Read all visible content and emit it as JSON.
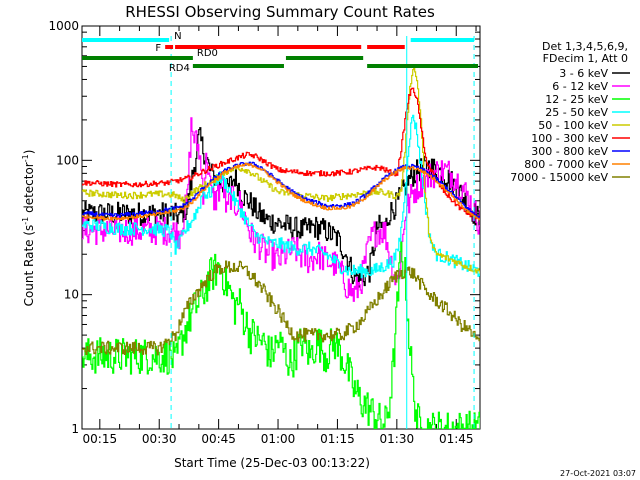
{
  "chart_data": {
    "type": "line",
    "title": "RHESSI Observing Summary Count Rates",
    "xlabel": "Start Time (25-Dec-03 00:13:22)",
    "ylabel_main": "Count Rate (s",
    "ylabel_sup1": "-1",
    "ylabel_mid": " detector",
    "ylabel_sup2": "-1",
    "ylabel_end": ")",
    "footer": "27-Oct-2021 03:07",
    "yscale": "log",
    "ylim": [
      1,
      1000
    ],
    "xlim_minutes": [
      10.5,
      111
    ],
    "x_ticks": [
      {
        "minute": 15,
        "label": "00:15"
      },
      {
        "minute": 30,
        "label": "00:30"
      },
      {
        "minute": 45,
        "label": "00:45"
      },
      {
        "minute": 60,
        "label": "01:00"
      },
      {
        "minute": 75,
        "label": "01:15"
      },
      {
        "minute": 90,
        "label": "01:30"
      },
      {
        "minute": 105,
        "label": "01:45"
      }
    ],
    "y_ticks": [
      {
        "value": 1,
        "label": "1"
      },
      {
        "value": 10,
        "label": "10"
      },
      {
        "value": 100,
        "label": "100"
      },
      {
        "value": 1000,
        "label": "1000"
      }
    ],
    "legend_header": [
      "Det 1,3,4,5,6,9,",
      "FDecim 1, Att 0"
    ],
    "legend_placement": "right",
    "series": [
      {
        "name": "3 - 6 keV",
        "color": "#000000",
        "x": [
          33,
          35,
          37,
          40,
          43,
          45,
          47,
          49,
          51,
          53,
          55,
          57,
          60,
          63,
          66,
          69,
          72,
          75,
          77,
          79,
          81,
          83,
          85,
          87,
          88,
          90,
          91,
          92,
          93,
          94,
          95,
          96,
          97,
          98,
          99,
          100,
          101,
          102,
          103,
          104,
          105,
          106,
          107,
          108,
          109,
          110.5
        ],
        "y": [
          40,
          38,
          45,
          150,
          80,
          70,
          60,
          75,
          55,
          48,
          40,
          36,
          34,
          32,
          30,
          32,
          30,
          26,
          20,
          14,
          13,
          15,
          32,
          32,
          40,
          48,
          55,
          62,
          72,
          78,
          82,
          86,
          88,
          90,
          88,
          86,
          82,
          78,
          73,
          68,
          62,
          57,
          52,
          47,
          42,
          37
        ]
      },
      {
        "name": "6 - 12 keV",
        "color": "#ff00ff",
        "x": [
          33,
          35,
          37,
          38,
          39,
          40,
          41,
          42,
          43,
          44,
          45,
          46,
          47,
          48,
          49,
          50,
          51,
          52,
          53,
          54,
          55,
          56,
          57,
          58,
          59,
          60,
          61,
          62,
          64,
          66,
          68,
          70,
          72,
          74,
          75,
          76,
          77,
          78,
          79,
          80,
          81,
          82,
          83,
          84,
          85,
          86,
          87,
          88,
          89,
          90,
          91,
          92,
          94,
          96,
          98,
          100,
          102,
          104,
          106,
          108,
          110.5
        ],
        "y": [
          30,
          28,
          50,
          180,
          140,
          120,
          60,
          110,
          55,
          50,
          60,
          70,
          40,
          55,
          45,
          50,
          42,
          35,
          28,
          25,
          24,
          22,
          20,
          20,
          19,
          18,
          19,
          20,
          22,
          19,
          18,
          20,
          18,
          17,
          16,
          14,
          12,
          11,
          10,
          11,
          13,
          18,
          24,
          28,
          30,
          30,
          29,
          20,
          15,
          12,
          20,
          40,
          58,
          68,
          76,
          82,
          84,
          78,
          66,
          52,
          36
        ]
      },
      {
        "name": "12 - 25 keV",
        "color": "#00ff00",
        "x": [
          33,
          34,
          35,
          36,
          37,
          38,
          39,
          40,
          41,
          42,
          43,
          44,
          45,
          46,
          47,
          48,
          49,
          50,
          51,
          52,
          53,
          54,
          55,
          56,
          57,
          58,
          59,
          60,
          61,
          62,
          63,
          64,
          65,
          66,
          67,
          68,
          69,
          70,
          71,
          72,
          73,
          74,
          75,
          76,
          77,
          78,
          79,
          80,
          81,
          82,
          83,
          84,
          85,
          86,
          87,
          88,
          89,
          90,
          91,
          92,
          93,
          94,
          95,
          96,
          97,
          98,
          100,
          102,
          104,
          106,
          108,
          110.5
        ],
        "y": [
          3.5,
          3,
          4,
          5,
          6,
          7,
          8,
          9,
          10,
          12,
          14,
          15,
          16,
          14,
          12,
          10,
          8,
          9,
          7,
          6,
          5,
          5,
          4.5,
          4.5,
          4,
          3.5,
          4,
          4.5,
          4,
          3.5,
          3,
          3.5,
          4,
          4.5,
          4,
          3.5,
          4,
          4.5,
          4,
          3.5,
          4,
          4.5,
          4,
          3.5,
          3,
          2.5,
          2,
          1.8,
          1.6,
          1.5,
          1.4,
          1.3,
          1.2,
          1.1,
          1.1,
          1.5,
          3,
          8,
          22,
          14,
          5,
          2,
          1.2,
          1,
          1,
          1,
          1,
          1,
          1,
          1,
          1,
          1
        ]
      },
      {
        "name": "25 - 50 keV",
        "color": "#00ffff",
        "x": [
          13,
          16,
          20,
          24,
          28,
          32,
          33,
          34,
          35,
          36,
          37,
          38,
          39,
          40,
          41,
          42,
          43,
          44,
          45,
          46,
          47,
          48,
          49,
          50,
          51,
          52,
          53,
          54,
          55,
          56,
          57,
          58,
          59,
          60,
          62,
          64,
          66,
          68,
          70,
          72,
          74,
          76,
          78,
          80,
          82,
          84,
          86,
          88,
          89,
          90,
          91,
          92,
          93,
          94,
          95,
          96,
          97,
          98,
          99,
          100,
          102,
          104,
          106,
          108,
          110.5
        ],
        "y": [
          33,
          32,
          31,
          31,
          31,
          30,
          28,
          22,
          24,
          28,
          32,
          35,
          40,
          45,
          60,
          55,
          58,
          70,
          75,
          72,
          65,
          58,
          50,
          45,
          40,
          35,
          32,
          28,
          27,
          26,
          25,
          24,
          24,
          24,
          23,
          22,
          22,
          22,
          21,
          20,
          18,
          16,
          15,
          15,
          15,
          15,
          16,
          17,
          18,
          20,
          30,
          60,
          140,
          220,
          160,
          90,
          50,
          30,
          22,
          20,
          19,
          18,
          17,
          16,
          15
        ]
      },
      {
        "name": "50 - 100 keV",
        "color": "#cccc00",
        "x": [
          13,
          16,
          20,
          24,
          28,
          32,
          34,
          36,
          38,
          40,
          42,
          44,
          46,
          48,
          50,
          52,
          54,
          56,
          58,
          60,
          62,
          64,
          66,
          68,
          70,
          72,
          74,
          76,
          78,
          80,
          82,
          84,
          86,
          88,
          89,
          90,
          91,
          92,
          93,
          94,
          95,
          96,
          97,
          98,
          99,
          100,
          102,
          104,
          106,
          108,
          110.5
        ],
        "y": [
          57,
          56,
          55,
          55,
          56,
          56,
          55,
          50,
          57,
          62,
          67,
          72,
          80,
          85,
          88,
          85,
          78,
          70,
          64,
          58,
          57,
          56,
          55,
          54,
          53,
          52,
          53,
          54,
          55,
          56,
          57,
          58,
          58,
          56,
          55,
          54,
          60,
          120,
          300,
          500,
          400,
          200,
          60,
          30,
          22,
          20,
          19,
          18,
          17,
          16,
          15
        ]
      },
      {
        "name": "100 - 300 keV",
        "color": "#ff0000",
        "x": [
          13,
          16,
          20,
          24,
          28,
          32,
          34,
          36,
          38,
          40,
          42,
          44,
          46,
          48,
          50,
          52,
          54,
          56,
          58,
          60,
          62,
          64,
          66,
          68,
          70,
          72,
          74,
          76,
          78,
          80,
          82,
          84,
          86,
          88,
          89,
          90,
          91,
          92,
          93,
          94,
          95,
          96,
          97,
          98,
          99,
          100,
          102,
          104,
          106,
          108,
          110.5
        ],
        "y": [
          68,
          67,
          66,
          66,
          67,
          68,
          70,
          72,
          75,
          80,
          85,
          90,
          95,
          100,
          105,
          110,
          108,
          100,
          92,
          85,
          83,
          82,
          81,
          80,
          80,
          80,
          80,
          81,
          82,
          84,
          86,
          88,
          88,
          82,
          80,
          80,
          120,
          200,
          300,
          350,
          280,
          180,
          110,
          90,
          80,
          70,
          58,
          50,
          44,
          40,
          37
        ]
      },
      {
        "name": "300 - 800 keV",
        "color": "#0000ff",
        "x": [
          13,
          16,
          20,
          24,
          28,
          32,
          34,
          36,
          38,
          40,
          42,
          44,
          46,
          48,
          50,
          52,
          54,
          56,
          58,
          60,
          62,
          64,
          66,
          68,
          70,
          72,
          74,
          76,
          78,
          80,
          82,
          84,
          86,
          88,
          90,
          92,
          94,
          96,
          98,
          100,
          102,
          104,
          106,
          108,
          110.5
        ],
        "y": [
          40,
          39,
          39,
          40,
          41,
          43,
          44,
          46,
          50,
          58,
          66,
          74,
          82,
          88,
          92,
          95,
          93,
          87,
          78,
          70,
          63,
          57,
          53,
          50,
          48,
          46,
          46,
          46,
          47,
          50,
          55,
          62,
          70,
          78,
          85,
          90,
          90,
          86,
          80,
          72,
          64,
          56,
          49,
          43,
          38
        ]
      },
      {
        "name": "800 - 7000 keV",
        "color": "#ff8000",
        "x": [
          13,
          16,
          20,
          24,
          28,
          32,
          34,
          36,
          38,
          40,
          42,
          44,
          46,
          48,
          50,
          52,
          54,
          56,
          58,
          60,
          62,
          64,
          66,
          68,
          70,
          72,
          74,
          76,
          78,
          80,
          82,
          84,
          86,
          88,
          90,
          92,
          94,
          96,
          98,
          100,
          102,
          104,
          106,
          108,
          110.5
        ],
        "y": [
          38,
          37,
          37,
          38,
          39,
          41,
          42,
          44,
          48,
          56,
          64,
          72,
          80,
          86,
          90,
          93,
          91,
          85,
          76,
          68,
          61,
          55,
          51,
          48,
          46,
          44,
          44,
          44,
          45,
          48,
          53,
          60,
          68,
          76,
          83,
          88,
          88,
          84,
          78,
          70,
          62,
          54,
          47,
          41,
          36
        ]
      },
      {
        "name": "7000 - 15000 keV",
        "color": "#808000",
        "x": [
          13,
          16,
          20,
          24,
          28,
          30,
          32,
          34,
          35,
          36,
          37,
          38,
          40,
          42,
          44,
          46,
          48,
          50,
          52,
          54,
          56,
          58,
          60,
          62,
          64,
          66,
          68,
          70,
          72,
          74,
          76,
          78,
          80,
          82,
          84,
          86,
          88,
          90,
          92,
          94,
          96,
          98,
          100,
          102,
          104,
          106,
          108,
          110.5
        ],
        "y": [
          4,
          4,
          4,
          4,
          4,
          4,
          4.5,
          5,
          6,
          7,
          8,
          9,
          11,
          13,
          15,
          16,
          16,
          16,
          15,
          13,
          11,
          9,
          7.5,
          6,
          5,
          5,
          5,
          5,
          5,
          5,
          5,
          5.5,
          6,
          7,
          8.5,
          10,
          12,
          14,
          15,
          14.5,
          12,
          10,
          9,
          8,
          7,
          6,
          5.5,
          4.5
        ]
      }
    ],
    "state_bars": [
      {
        "label": "N",
        "color": "#00ffff",
        "segments": [
          [
            10.5,
            32.5
          ],
          [
            93.5,
            109.5
          ]
        ]
      },
      {
        "label": "F",
        "color": "#ff0000",
        "segments": [
          [
            31.5,
            33.5
          ],
          [
            34,
            81
          ],
          [
            82.5,
            92
          ]
        ]
      },
      {
        "label": "RD0",
        "color": "#008000",
        "segments": [
          [
            10.5,
            38.5
          ],
          [
            62,
            81.5
          ]
        ]
      },
      {
        "label": "RD4",
        "color": "#008000",
        "segments": [
          [
            38.5,
            61.5
          ],
          [
            82.5,
            110.5
          ]
        ]
      }
    ],
    "markers": [
      {
        "minute": 33,
        "color": "#00ffff",
        "style": "dashed"
      },
      {
        "minute": 92.5,
        "color": "#00ffff",
        "style": "solid"
      },
      {
        "minute": 109.5,
        "color": "#00ffff",
        "style": "dashed"
      }
    ]
  }
}
